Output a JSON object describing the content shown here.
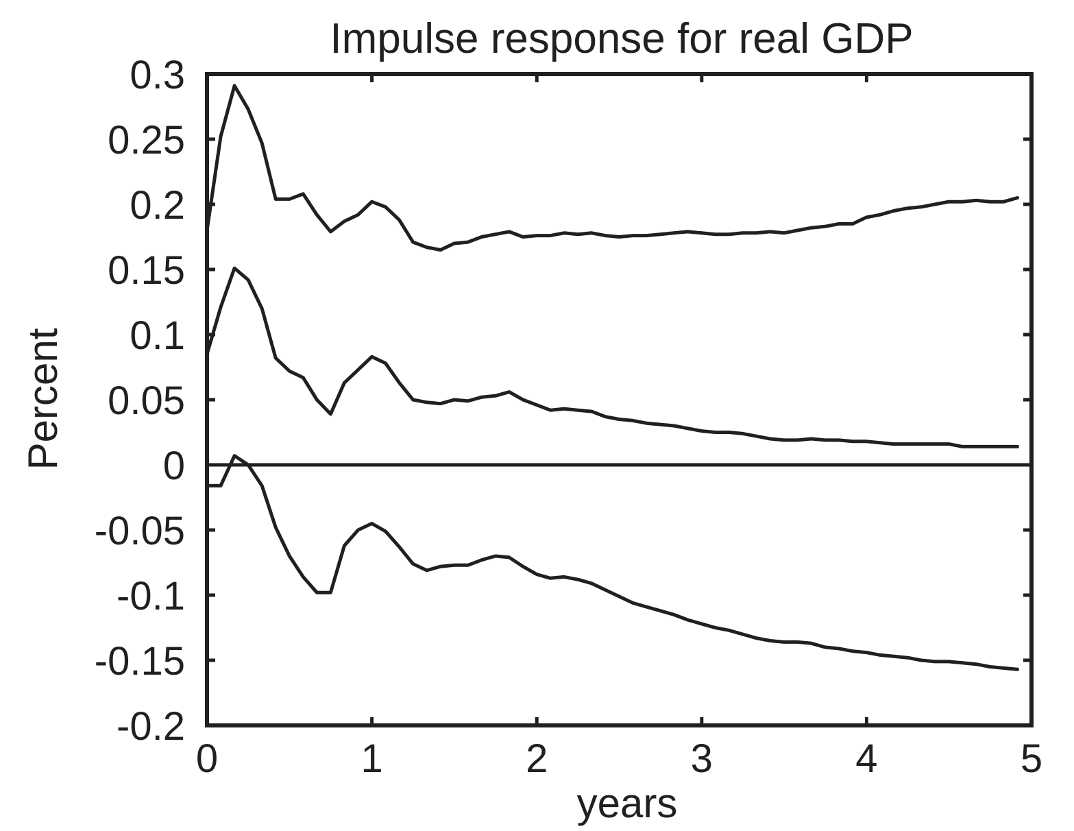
{
  "chart_data": {
    "type": "line",
    "title": "Impulse response for real GDP",
    "xlabel": "years",
    "ylabel": "Percent",
    "xlim": [
      0,
      5
    ],
    "ylim": [
      -0.2,
      0.3
    ],
    "xticks": [
      0,
      1,
      2,
      3,
      4,
      5
    ],
    "xtick_labels": [
      "0",
      "1",
      "2",
      "3",
      "4",
      "5"
    ],
    "yticks": [
      0.3,
      0.25,
      0.2,
      0.15,
      0.1,
      0.05,
      0,
      -0.05,
      -0.1,
      -0.15,
      -0.2
    ],
    "ytick_labels": [
      "0.3",
      "0.25",
      "0.2",
      "0.15",
      "0.1",
      "0.05",
      "0",
      "-0.05",
      "-0.1",
      "-0.15",
      "-0.2"
    ],
    "grid": false,
    "zero_line": true,
    "line_color": "#231f20",
    "x_step": 0.0833,
    "series": [
      {
        "values": [
          0.18,
          0.252,
          0.291,
          0.273,
          0.247,
          0.204,
          0.204,
          0.208,
          0.192,
          0.179,
          0.187,
          0.192,
          0.202,
          0.198,
          0.188,
          0.171,
          0.167,
          0.165,
          0.17,
          0.171,
          0.175,
          0.177,
          0.179,
          0.175,
          0.176,
          0.176,
          0.178,
          0.177,
          0.178,
          0.176,
          0.175,
          0.176,
          0.176,
          0.177,
          0.178,
          0.179,
          0.178,
          0.177,
          0.177,
          0.178,
          0.178,
          0.179,
          0.178,
          0.18,
          0.182,
          0.183,
          0.185,
          0.185,
          0.19,
          0.192,
          0.195,
          0.197,
          0.198,
          0.2,
          0.202,
          0.202,
          0.203,
          0.202,
          0.202,
          0.205
        ]
      },
      {
        "values": [
          0.085,
          0.121,
          0.151,
          0.142,
          0.12,
          0.082,
          0.072,
          0.067,
          0.05,
          0.039,
          0.063,
          0.073,
          0.083,
          0.078,
          0.063,
          0.05,
          0.048,
          0.047,
          0.05,
          0.049,
          0.052,
          0.053,
          0.056,
          0.05,
          0.046,
          0.042,
          0.043,
          0.042,
          0.041,
          0.037,
          0.035,
          0.034,
          0.032,
          0.031,
          0.03,
          0.028,
          0.026,
          0.025,
          0.025,
          0.024,
          0.022,
          0.02,
          0.019,
          0.019,
          0.02,
          0.019,
          0.019,
          0.018,
          0.018,
          0.017,
          0.016,
          0.016,
          0.016,
          0.016,
          0.016,
          0.014,
          0.014,
          0.014,
          0.014,
          0.014
        ]
      },
      {
        "values": [
          -0.016,
          -0.016,
          0.007,
          0.0,
          -0.016,
          -0.048,
          -0.07,
          -0.086,
          -0.098,
          -0.098,
          -0.062,
          -0.05,
          -0.045,
          -0.051,
          -0.063,
          -0.076,
          -0.081,
          -0.078,
          -0.077,
          -0.077,
          -0.073,
          -0.07,
          -0.071,
          -0.078,
          -0.084,
          -0.087,
          -0.086,
          -0.088,
          -0.091,
          -0.096,
          -0.101,
          -0.106,
          -0.109,
          -0.112,
          -0.115,
          -0.119,
          -0.122,
          -0.125,
          -0.127,
          -0.13,
          -0.133,
          -0.135,
          -0.136,
          -0.136,
          -0.137,
          -0.14,
          -0.141,
          -0.143,
          -0.144,
          -0.146,
          -0.147,
          -0.148,
          -0.15,
          -0.151,
          -0.151,
          -0.152,
          -0.153,
          -0.155,
          -0.156,
          -0.157
        ]
      }
    ]
  }
}
